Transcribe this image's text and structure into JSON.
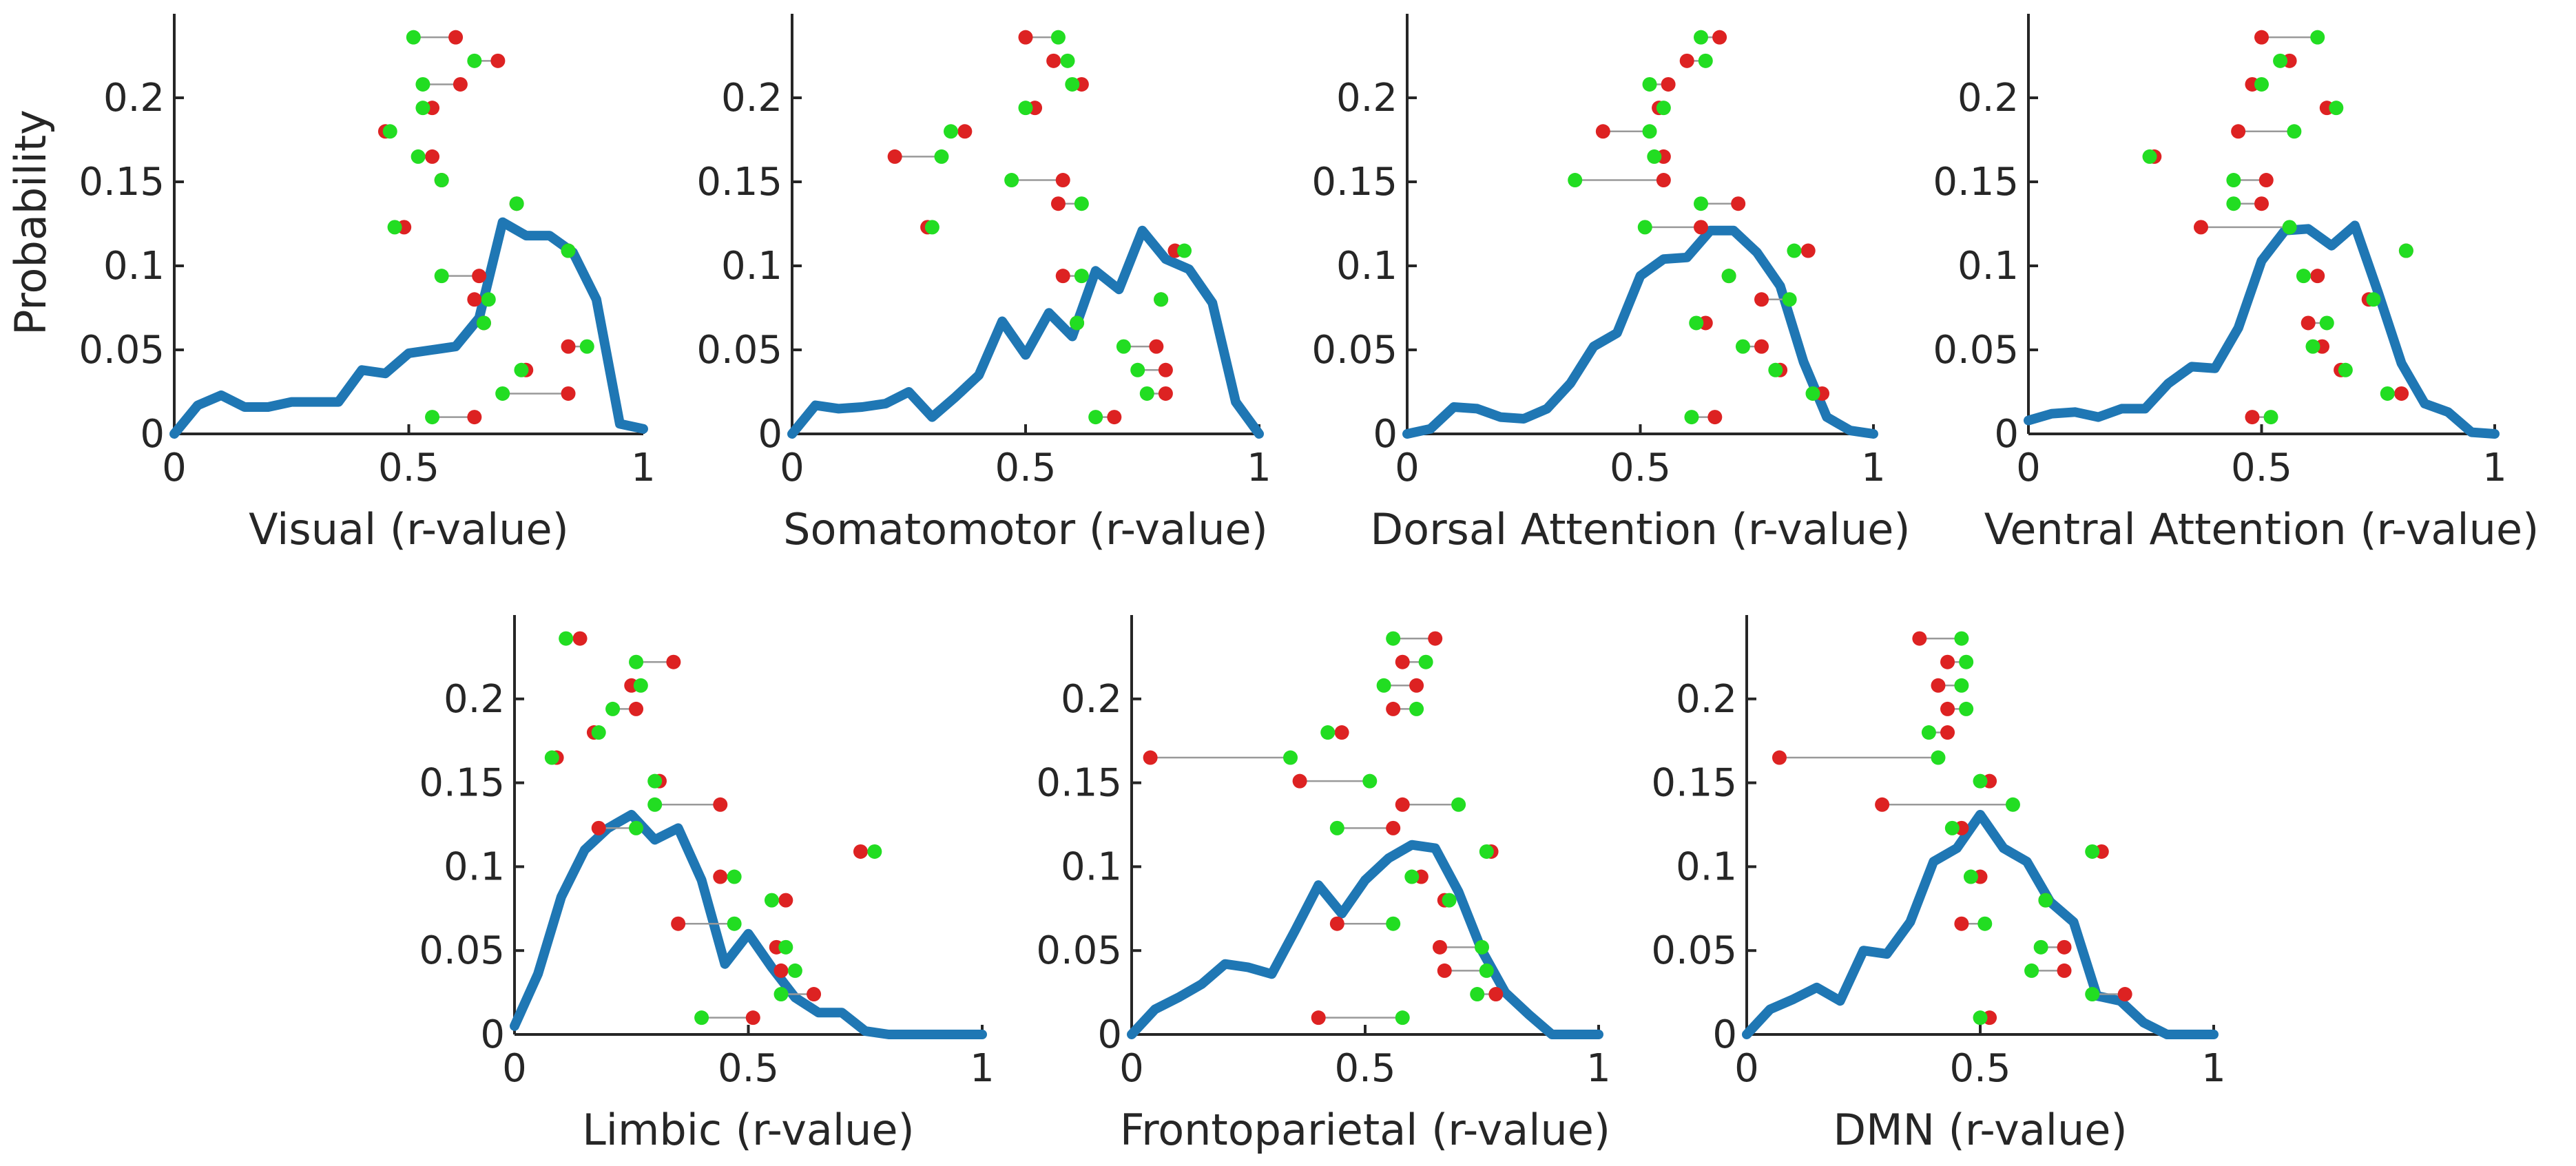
{
  "figure": {
    "ylabel": "Probability",
    "colors": {
      "density": "#1f77b4",
      "start_dot": "#dd2222",
      "end_dot": "#22dd22",
      "connector": "#999999"
    }
  },
  "chart_data": [
    {
      "type": "line",
      "title": "",
      "xlabel": "Visual (r-value)",
      "ylabel": "Probability",
      "xlim": [
        0,
        1
      ],
      "ylim": [
        0,
        0.25
      ],
      "xticks": [
        "0",
        "0.5",
        "1"
      ],
      "yticks": [
        "0",
        "0.05",
        "0.1",
        "0.15",
        "0.2"
      ],
      "density": {
        "x": [
          0,
          0.05,
          0.1,
          0.15,
          0.2,
          0.25,
          0.3,
          0.35,
          0.4,
          0.45,
          0.5,
          0.55,
          0.6,
          0.65,
          0.7,
          0.75,
          0.8,
          0.85,
          0.9,
          0.95,
          1.0
        ],
        "y": [
          0,
          0.017,
          0.023,
          0.016,
          0.016,
          0.019,
          0.019,
          0.019,
          0.038,
          0.036,
          0.048,
          0.05,
          0.052,
          0.069,
          0.126,
          0.118,
          0.118,
          0.108,
          0.08,
          0.006,
          0.003
        ]
      },
      "pairs": [
        {
          "p": 0.236,
          "a": 0.6,
          "b": 0.51
        },
        {
          "p": 0.222,
          "a": 0.69,
          "b": 0.64
        },
        {
          "p": 0.208,
          "a": 0.61,
          "b": 0.53
        },
        {
          "p": 0.194,
          "a": 0.55,
          "b": 0.53
        },
        {
          "p": 0.18,
          "a": 0.45,
          "b": 0.46
        },
        {
          "p": 0.165,
          "a": 0.55,
          "b": 0.52
        },
        {
          "p": 0.151,
          "a": 0.57,
          "b": 0.57
        },
        {
          "p": 0.137,
          "a": 0.73,
          "b": 0.73
        },
        {
          "p": 0.123,
          "a": 0.49,
          "b": 0.47
        },
        {
          "p": 0.109,
          "a": 0.84,
          "b": 0.84
        },
        {
          "p": 0.094,
          "a": 0.65,
          "b": 0.57
        },
        {
          "p": 0.08,
          "a": 0.64,
          "b": 0.67
        },
        {
          "p": 0.066,
          "a": 0.66,
          "b": 0.66
        },
        {
          "p": 0.052,
          "a": 0.84,
          "b": 0.88
        },
        {
          "p": 0.038,
          "a": 0.75,
          "b": 0.74
        },
        {
          "p": 0.024,
          "a": 0.84,
          "b": 0.7
        },
        {
          "p": 0.01,
          "a": 0.64,
          "b": 0.55
        }
      ]
    },
    {
      "type": "line",
      "title": "",
      "xlabel": "Somatomotor (r-value)",
      "ylabel": "",
      "xlim": [
        0,
        1
      ],
      "ylim": [
        0,
        0.25
      ],
      "xticks": [
        "0",
        "0.5",
        "1"
      ],
      "yticks": [
        "0",
        "0.05",
        "0.1",
        "0.15",
        "0.2"
      ],
      "density": {
        "x": [
          0,
          0.05,
          0.1,
          0.15,
          0.2,
          0.25,
          0.3,
          0.35,
          0.4,
          0.45,
          0.5,
          0.55,
          0.6,
          0.65,
          0.7,
          0.75,
          0.8,
          0.85,
          0.9,
          0.95,
          1.0
        ],
        "y": [
          0,
          0.017,
          0.015,
          0.016,
          0.018,
          0.025,
          0.01,
          0.022,
          0.035,
          0.067,
          0.047,
          0.072,
          0.058,
          0.097,
          0.086,
          0.121,
          0.104,
          0.098,
          0.078,
          0.019,
          0
        ]
      },
      "pairs": [
        {
          "p": 0.236,
          "a": 0.5,
          "b": 0.57
        },
        {
          "p": 0.222,
          "a": 0.56,
          "b": 0.59
        },
        {
          "p": 0.208,
          "a": 0.62,
          "b": 0.6
        },
        {
          "p": 0.194,
          "a": 0.52,
          "b": 0.5
        },
        {
          "p": 0.18,
          "a": 0.37,
          "b": 0.34
        },
        {
          "p": 0.165,
          "a": 0.22,
          "b": 0.32
        },
        {
          "p": 0.151,
          "a": 0.58,
          "b": 0.47
        },
        {
          "p": 0.137,
          "a": 0.57,
          "b": 0.62
        },
        {
          "p": 0.123,
          "a": 0.29,
          "b": 0.3
        },
        {
          "p": 0.109,
          "a": 0.82,
          "b": 0.84
        },
        {
          "p": 0.094,
          "a": 0.58,
          "b": 0.62
        },
        {
          "p": 0.08,
          "a": 0.79,
          "b": 0.79
        },
        {
          "p": 0.066,
          "a": 0.61,
          "b": 0.61
        },
        {
          "p": 0.052,
          "a": 0.78,
          "b": 0.71
        },
        {
          "p": 0.038,
          "a": 0.8,
          "b": 0.74
        },
        {
          "p": 0.024,
          "a": 0.8,
          "b": 0.76
        },
        {
          "p": 0.01,
          "a": 0.69,
          "b": 0.65
        }
      ]
    },
    {
      "type": "line",
      "title": "",
      "xlabel": "Dorsal Attention (r-value)",
      "ylabel": "",
      "xlim": [
        0,
        1
      ],
      "ylim": [
        0,
        0.25
      ],
      "xticks": [
        "0",
        "0.5",
        "1"
      ],
      "yticks": [
        "0",
        "0.05",
        "0.1",
        "0.15",
        "0.2"
      ],
      "density": {
        "x": [
          0,
          0.05,
          0.1,
          0.15,
          0.2,
          0.25,
          0.3,
          0.35,
          0.4,
          0.45,
          0.5,
          0.55,
          0.6,
          0.65,
          0.7,
          0.75,
          0.8,
          0.85,
          0.9,
          0.95,
          1.0
        ],
        "y": [
          0,
          0.003,
          0.016,
          0.015,
          0.01,
          0.009,
          0.015,
          0.03,
          0.052,
          0.06,
          0.094,
          0.104,
          0.105,
          0.121,
          0.121,
          0.108,
          0.088,
          0.043,
          0.01,
          0.002,
          0
        ]
      },
      "pairs": [
        {
          "p": 0.236,
          "a": 0.67,
          "b": 0.63
        },
        {
          "p": 0.222,
          "a": 0.6,
          "b": 0.64
        },
        {
          "p": 0.208,
          "a": 0.56,
          "b": 0.52
        },
        {
          "p": 0.194,
          "a": 0.54,
          "b": 0.55
        },
        {
          "p": 0.18,
          "a": 0.42,
          "b": 0.52
        },
        {
          "p": 0.165,
          "a": 0.55,
          "b": 0.53
        },
        {
          "p": 0.151,
          "a": 0.55,
          "b": 0.36
        },
        {
          "p": 0.137,
          "a": 0.71,
          "b": 0.63
        },
        {
          "p": 0.123,
          "a": 0.63,
          "b": 0.51
        },
        {
          "p": 0.109,
          "a": 0.86,
          "b": 0.83
        },
        {
          "p": 0.094,
          "a": 0.69,
          "b": 0.69
        },
        {
          "p": 0.08,
          "a": 0.76,
          "b": 0.82
        },
        {
          "p": 0.066,
          "a": 0.64,
          "b": 0.62
        },
        {
          "p": 0.052,
          "a": 0.76,
          "b": 0.72
        },
        {
          "p": 0.038,
          "a": 0.8,
          "b": 0.79
        },
        {
          "p": 0.024,
          "a": 0.89,
          "b": 0.87
        },
        {
          "p": 0.01,
          "a": 0.66,
          "b": 0.61
        }
      ]
    },
    {
      "type": "line",
      "title": "",
      "xlabel": "Ventral Attention (r-value)",
      "ylabel": "",
      "xlim": [
        0,
        1
      ],
      "ylim": [
        0,
        0.25
      ],
      "xticks": [
        "0",
        "0.5",
        "1"
      ],
      "yticks": [
        "0",
        "0.05",
        "0.1",
        "0.15",
        "0.2"
      ],
      "density": {
        "x": [
          0,
          0.05,
          0.1,
          0.15,
          0.2,
          0.25,
          0.3,
          0.35,
          0.4,
          0.45,
          0.5,
          0.55,
          0.6,
          0.65,
          0.7,
          0.75,
          0.8,
          0.85,
          0.9,
          0.95,
          1.0
        ],
        "y": [
          0.008,
          0.012,
          0.013,
          0.01,
          0.015,
          0.015,
          0.03,
          0.04,
          0.039,
          0.063,
          0.103,
          0.121,
          0.122,
          0.112,
          0.124,
          0.084,
          0.042,
          0.018,
          0.013,
          0.001,
          0
        ]
      },
      "pairs": [
        {
          "p": 0.236,
          "a": 0.5,
          "b": 0.62
        },
        {
          "p": 0.222,
          "a": 0.56,
          "b": 0.54
        },
        {
          "p": 0.208,
          "a": 0.48,
          "b": 0.5
        },
        {
          "p": 0.194,
          "a": 0.64,
          "b": 0.66
        },
        {
          "p": 0.18,
          "a": 0.45,
          "b": 0.57
        },
        {
          "p": 0.165,
          "a": 0.27,
          "b": 0.26
        },
        {
          "p": 0.151,
          "a": 0.51,
          "b": 0.44
        },
        {
          "p": 0.137,
          "a": 0.5,
          "b": 0.44
        },
        {
          "p": 0.123,
          "a": 0.37,
          "b": 0.56
        },
        {
          "p": 0.109,
          "a": 0.81,
          "b": 0.81
        },
        {
          "p": 0.094,
          "a": 0.62,
          "b": 0.59
        },
        {
          "p": 0.08,
          "a": 0.73,
          "b": 0.74
        },
        {
          "p": 0.066,
          "a": 0.6,
          "b": 0.64
        },
        {
          "p": 0.052,
          "a": 0.63,
          "b": 0.61
        },
        {
          "p": 0.038,
          "a": 0.67,
          "b": 0.68
        },
        {
          "p": 0.024,
          "a": 0.8,
          "b": 0.77
        },
        {
          "p": 0.01,
          "a": 0.48,
          "b": 0.52
        }
      ]
    },
    {
      "type": "line",
      "title": "",
      "xlabel": "Limbic (r-value)",
      "ylabel": "",
      "xlim": [
        0,
        1
      ],
      "ylim": [
        0,
        0.25
      ],
      "xticks": [
        "0",
        "0.5",
        "1"
      ],
      "yticks": [
        "0",
        "0.05",
        "0.1",
        "0.15",
        "0.2"
      ],
      "density": {
        "x": [
          0,
          0.05,
          0.1,
          0.15,
          0.2,
          0.25,
          0.3,
          0.35,
          0.4,
          0.45,
          0.5,
          0.55,
          0.6,
          0.65,
          0.7,
          0.75,
          0.8,
          0.85,
          0.9,
          0.95,
          1.0
        ],
        "y": [
          0.005,
          0.036,
          0.082,
          0.11,
          0.123,
          0.131,
          0.116,
          0.123,
          0.092,
          0.042,
          0.06,
          0.04,
          0.022,
          0.013,
          0.013,
          0.002,
          0,
          0,
          0,
          0,
          0
        ]
      },
      "pairs": [
        {
          "p": 0.236,
          "a": 0.14,
          "b": 0.11
        },
        {
          "p": 0.222,
          "a": 0.34,
          "b": 0.26
        },
        {
          "p": 0.208,
          "a": 0.25,
          "b": 0.27
        },
        {
          "p": 0.194,
          "a": 0.26,
          "b": 0.21
        },
        {
          "p": 0.18,
          "a": 0.17,
          "b": 0.18
        },
        {
          "p": 0.165,
          "a": 0.09,
          "b": 0.08
        },
        {
          "p": 0.151,
          "a": 0.31,
          "b": 0.3
        },
        {
          "p": 0.137,
          "a": 0.44,
          "b": 0.3
        },
        {
          "p": 0.123,
          "a": 0.18,
          "b": 0.26
        },
        {
          "p": 0.109,
          "a": 0.74,
          "b": 0.77
        },
        {
          "p": 0.094,
          "a": 0.44,
          "b": 0.47
        },
        {
          "p": 0.08,
          "a": 0.58,
          "b": 0.55
        },
        {
          "p": 0.066,
          "a": 0.35,
          "b": 0.47
        },
        {
          "p": 0.052,
          "a": 0.56,
          "b": 0.58
        },
        {
          "p": 0.038,
          "a": 0.57,
          "b": 0.6
        },
        {
          "p": 0.024,
          "a": 0.64,
          "b": 0.57
        },
        {
          "p": 0.01,
          "a": 0.51,
          "b": 0.4
        }
      ]
    },
    {
      "type": "line",
      "title": "",
      "xlabel": "Frontoparietal (r-value)",
      "ylabel": "",
      "xlim": [
        0,
        1
      ],
      "ylim": [
        0,
        0.25
      ],
      "xticks": [
        "0",
        "0.5",
        "1"
      ],
      "yticks": [
        "0",
        "0.05",
        "0.1",
        "0.15",
        "0.2"
      ],
      "density": {
        "x": [
          0,
          0.05,
          0.1,
          0.15,
          0.2,
          0.25,
          0.3,
          0.35,
          0.4,
          0.45,
          0.5,
          0.55,
          0.6,
          0.65,
          0.7,
          0.75,
          0.8,
          0.85,
          0.9,
          0.95,
          1.0
        ],
        "y": [
          0,
          0.015,
          0.022,
          0.03,
          0.042,
          0.04,
          0.036,
          0.062,
          0.089,
          0.072,
          0.092,
          0.105,
          0.113,
          0.111,
          0.085,
          0.05,
          0.025,
          0.012,
          0,
          0,
          0
        ]
      },
      "pairs": [
        {
          "p": 0.236,
          "a": 0.65,
          "b": 0.56
        },
        {
          "p": 0.222,
          "a": 0.58,
          "b": 0.63
        },
        {
          "p": 0.208,
          "a": 0.61,
          "b": 0.54
        },
        {
          "p": 0.194,
          "a": 0.56,
          "b": 0.61
        },
        {
          "p": 0.18,
          "a": 0.45,
          "b": 0.42
        },
        {
          "p": 0.165,
          "a": 0.04,
          "b": 0.34
        },
        {
          "p": 0.151,
          "a": 0.36,
          "b": 0.51
        },
        {
          "p": 0.137,
          "a": 0.58,
          "b": 0.7
        },
        {
          "p": 0.123,
          "a": 0.56,
          "b": 0.44
        },
        {
          "p": 0.109,
          "a": 0.77,
          "b": 0.76
        },
        {
          "p": 0.094,
          "a": 0.62,
          "b": 0.6
        },
        {
          "p": 0.08,
          "a": 0.67,
          "b": 0.68
        },
        {
          "p": 0.066,
          "a": 0.44,
          "b": 0.56
        },
        {
          "p": 0.052,
          "a": 0.66,
          "b": 0.75
        },
        {
          "p": 0.038,
          "a": 0.67,
          "b": 0.76
        },
        {
          "p": 0.024,
          "a": 0.78,
          "b": 0.74
        },
        {
          "p": 0.01,
          "a": 0.4,
          "b": 0.58
        }
      ]
    },
    {
      "type": "line",
      "title": "",
      "xlabel": "DMN (r-value)",
      "ylabel": "",
      "xlim": [
        0,
        1
      ],
      "ylim": [
        0,
        0.25
      ],
      "xticks": [
        "0",
        "0.5",
        "1"
      ],
      "yticks": [
        "0",
        "0.05",
        "0.1",
        "0.15",
        "0.2"
      ],
      "density": {
        "x": [
          0,
          0.05,
          0.1,
          0.15,
          0.2,
          0.25,
          0.3,
          0.35,
          0.4,
          0.45,
          0.5,
          0.55,
          0.6,
          0.65,
          0.7,
          0.75,
          0.8,
          0.85,
          0.9,
          0.95,
          1.0
        ],
        "y": [
          0,
          0.015,
          0.021,
          0.028,
          0.02,
          0.05,
          0.048,
          0.067,
          0.103,
          0.111,
          0.131,
          0.111,
          0.103,
          0.079,
          0.067,
          0.023,
          0.02,
          0.007,
          0,
          0,
          0
        ]
      },
      "pairs": [
        {
          "p": 0.236,
          "a": 0.37,
          "b": 0.46
        },
        {
          "p": 0.222,
          "a": 0.43,
          "b": 0.47
        },
        {
          "p": 0.208,
          "a": 0.41,
          "b": 0.46
        },
        {
          "p": 0.194,
          "a": 0.43,
          "b": 0.47
        },
        {
          "p": 0.18,
          "a": 0.43,
          "b": 0.39
        },
        {
          "p": 0.165,
          "a": 0.07,
          "b": 0.41
        },
        {
          "p": 0.151,
          "a": 0.52,
          "b": 0.5
        },
        {
          "p": 0.137,
          "a": 0.29,
          "b": 0.57
        },
        {
          "p": 0.123,
          "a": 0.46,
          "b": 0.44
        },
        {
          "p": 0.109,
          "a": 0.76,
          "b": 0.74
        },
        {
          "p": 0.094,
          "a": 0.5,
          "b": 0.48
        },
        {
          "p": 0.08,
          "a": 0.64,
          "b": 0.64
        },
        {
          "p": 0.066,
          "a": 0.46,
          "b": 0.51
        },
        {
          "p": 0.052,
          "a": 0.68,
          "b": 0.63
        },
        {
          "p": 0.038,
          "a": 0.68,
          "b": 0.61
        },
        {
          "p": 0.024,
          "a": 0.81,
          "b": 0.74
        },
        {
          "p": 0.01,
          "a": 0.52,
          "b": 0.5
        }
      ]
    }
  ]
}
